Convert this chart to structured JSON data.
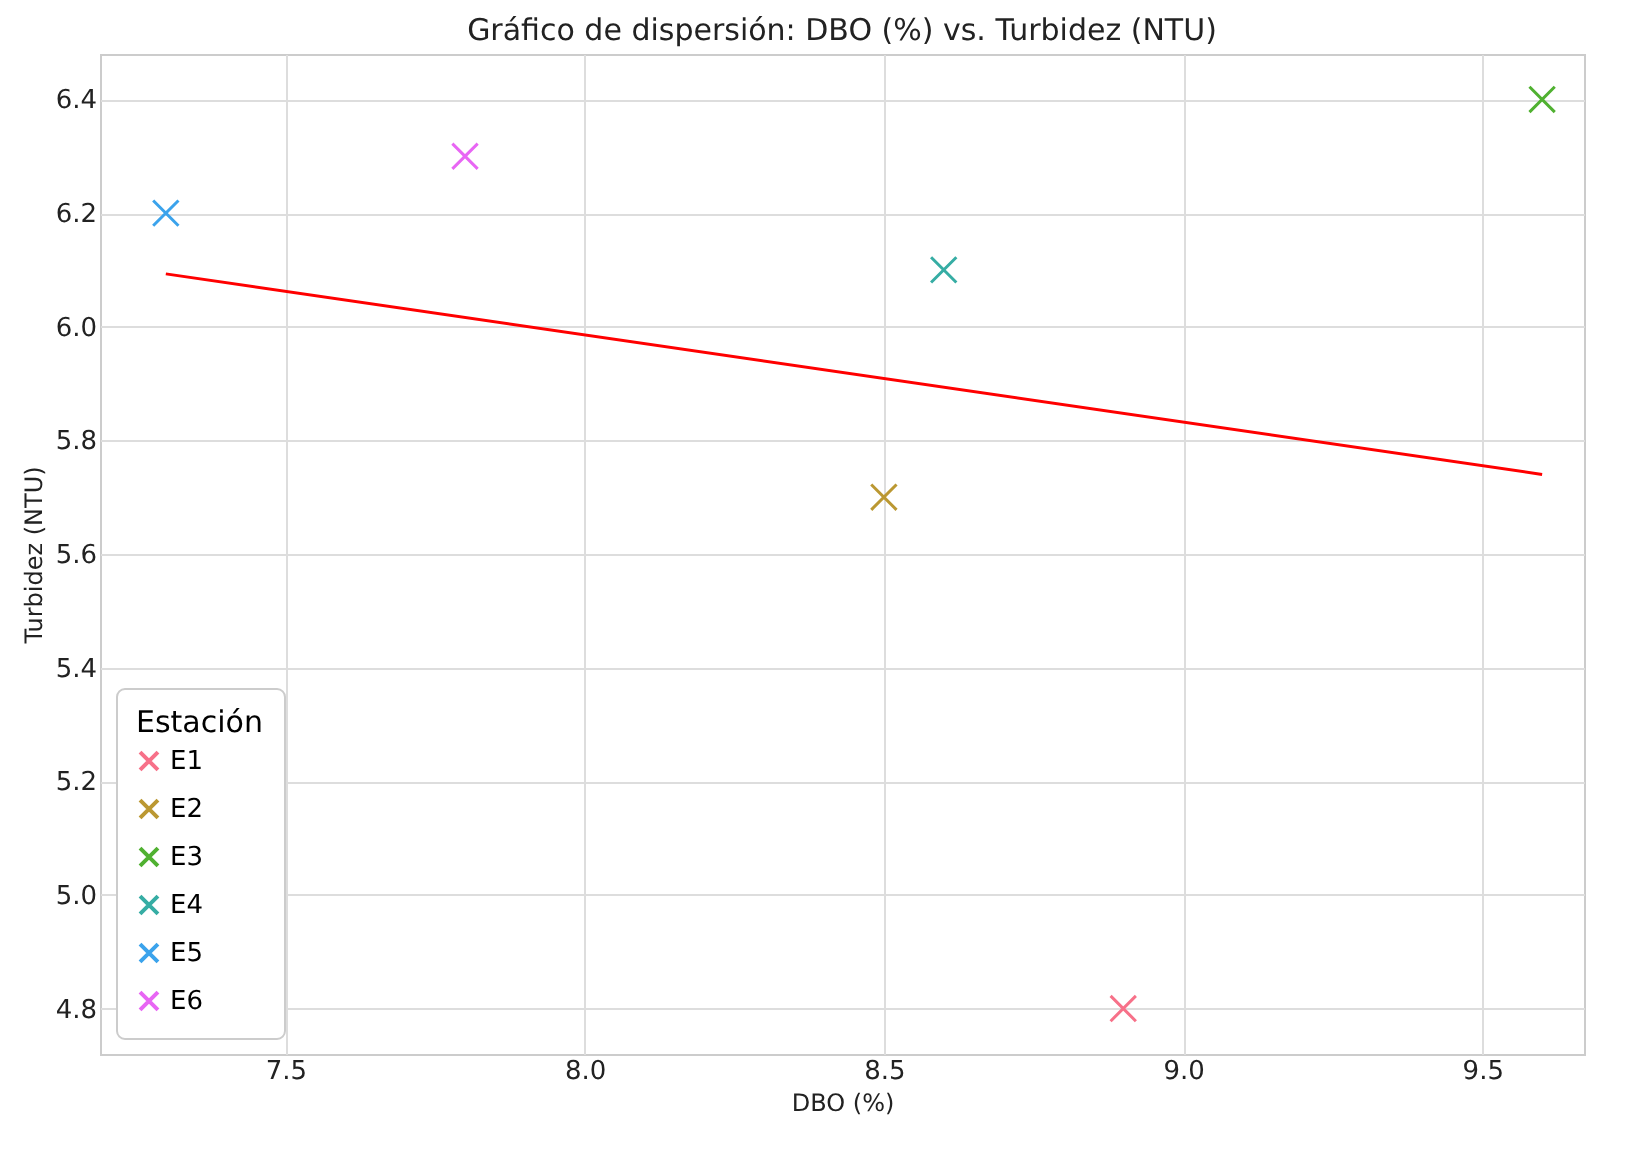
{
  "chart_data": {
    "type": "scatter",
    "title": "Gráfico de dispersión: DBO (%) vs. Turbidez (NTU)",
    "xlabel": "DBO (%)",
    "ylabel": "Turbidez (NTU)",
    "legend_title": "Estación",
    "series": [
      {
        "name": "E1",
        "color": "#f77189",
        "x": [
          8.9
        ],
        "values": [
          4.8
        ]
      },
      {
        "name": "E2",
        "color": "#bb9832",
        "x": [
          8.5
        ],
        "values": [
          5.7
        ]
      },
      {
        "name": "E3",
        "color": "#50b131",
        "x": [
          9.6
        ],
        "values": [
          6.4
        ]
      },
      {
        "name": "E4",
        "color": "#36ada4",
        "x": [
          8.6
        ],
        "values": [
          6.1
        ]
      },
      {
        "name": "E5",
        "color": "#3ba3ec",
        "x": [
          7.3
        ],
        "values": [
          6.2
        ]
      },
      {
        "name": "E6",
        "color": "#e866f4",
        "x": [
          7.8
        ],
        "values": [
          6.3
        ]
      },
      {
        "type": "line",
        "marker": "none",
        "color": "#ff0000",
        "x": [
          7.3,
          9.6
        ],
        "values": [
          6.093,
          5.74
        ]
      }
    ],
    "xlim": [
      7.19,
      9.67
    ],
    "ylim": [
      4.72,
      6.48
    ],
    "xticks": [
      7.5,
      {
        "value": 8,
        "label": "8.0"
      },
      8.5,
      {
        "value": 9,
        "label": "9.0"
      },
      9.5
    ],
    "yticks": [
      4.8,
      {
        "value": 5,
        "label": "5.0"
      },
      5.2,
      5.4,
      5.6,
      5.8,
      {
        "value": 6,
        "label": "6.0"
      },
      6.2,
      6.4
    ],
    "grid": true,
    "legend": "bottom left",
    "marker": "cross"
  }
}
